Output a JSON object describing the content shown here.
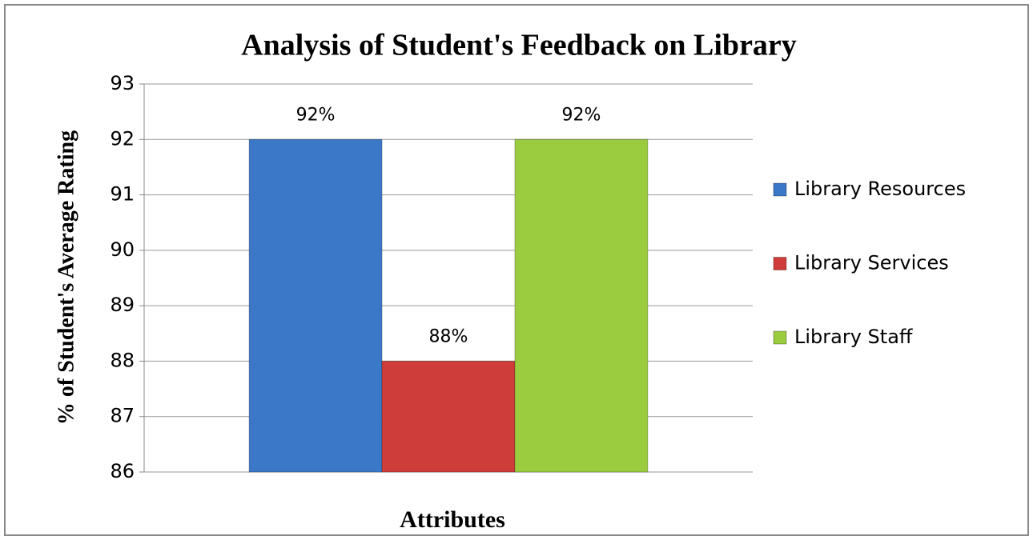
{
  "chart_data": {
    "type": "bar",
    "title": "Analysis of Student's Feedback on Library",
    "y_label": "% of Student's Average Rating",
    "x_label": "Attributes",
    "categories": [
      null
    ],
    "series": [
      {
        "name": "Library Resources",
        "color": "#3b78c8",
        "values": [
          92
        ],
        "value_labels": [
          "92%"
        ]
      },
      {
        "name": "Library Services",
        "color": "#cf3d3b",
        "values": [
          88
        ],
        "value_labels": [
          "88%"
        ]
      },
      {
        "name": "Library Staff",
        "color": "#9bcb3f",
        "values": [
          92
        ],
        "value_labels": [
          "92%"
        ]
      }
    ],
    "ylim": [
      86,
      93
    ],
    "yticks": [
      86,
      87,
      88,
      89,
      90,
      91,
      92,
      93
    ],
    "grid": true,
    "legend": "right"
  }
}
